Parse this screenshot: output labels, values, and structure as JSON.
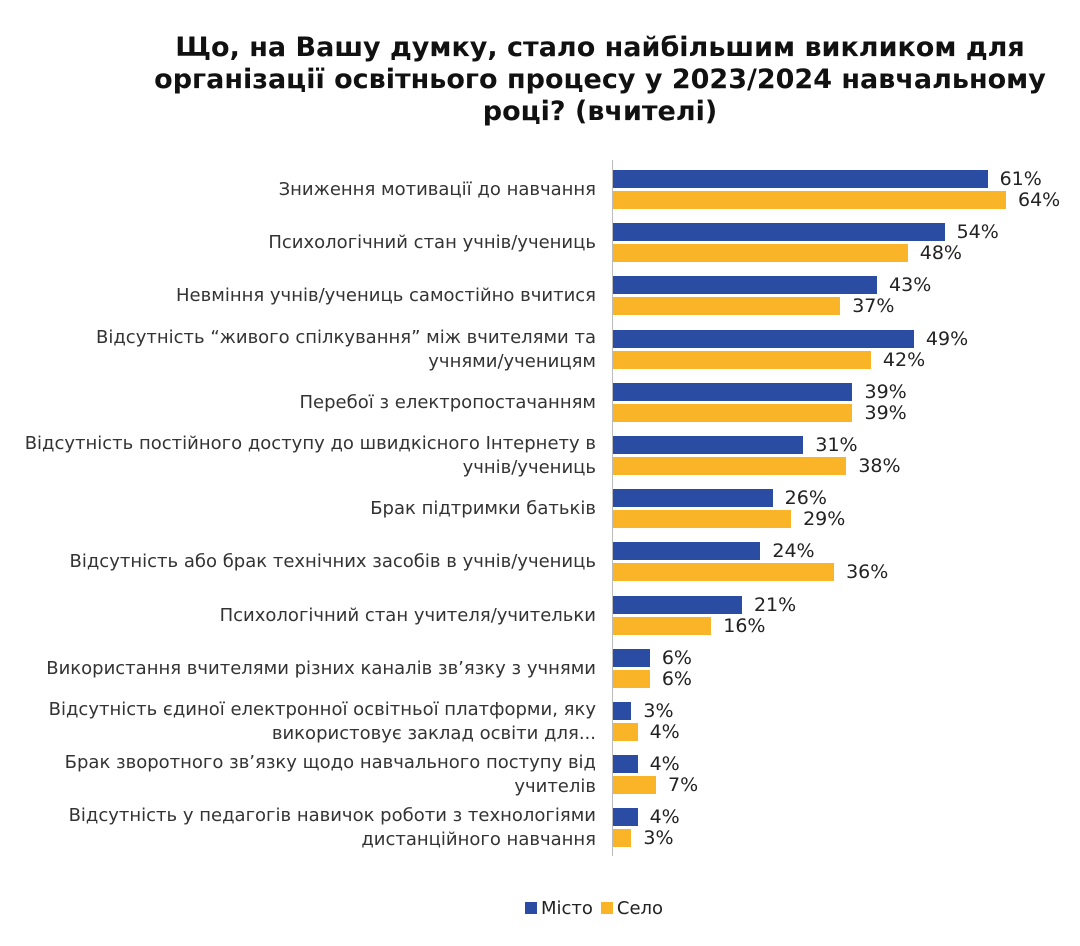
{
  "chart_data": {
    "type": "bar",
    "orientation": "horizontal",
    "title": "Що, на Вашу думку, стало найбільшим викликом для організації освітнього процесу у 2023/2024 навчальному році? (вчителі)",
    "categories": [
      "Зниження мотивації до навчання",
      "Психологічний стан учнів/учениць",
      "Невміння учнів/учениць самостійно вчитися",
      "Відсутність “живого спілкування” між вчителями та учнями/ученицям",
      "Перебої з електропостачанням",
      "Відсутність постійного доступу до швидкісного Інтернету в учнів/учениць",
      "Брак підтримки батьків",
      "Відсутність або брак технічних засобів в учнів/учениць",
      "Психологічний стан учителя/учительки",
      "Використання вчителями різних каналів зв’язку з учнями",
      "Відсутність єдиної електронної освітньої платформи, яку використовує заклад освіти для...",
      "Брак зворотного зв’язку щодо навчального поступу від учителів",
      "Відсутність у педагогів навичок роботи з технологіями дистанційного навчання"
    ],
    "series": [
      {
        "name": "Місто",
        "color": "#2b4ca3",
        "values": [
          61,
          54,
          43,
          49,
          39,
          31,
          26,
          24,
          21,
          6,
          3,
          4,
          4
        ],
        "value_labels": [
          "61%",
          "54%",
          "43%",
          "49%",
          "39%",
          "31%",
          "26%",
          "24%",
          "21%",
          "6%",
          "3%",
          "4%",
          "4%"
        ]
      },
      {
        "name": "Село",
        "color": "#f9b527",
        "values": [
          64,
          48,
          37,
          42,
          39,
          38,
          29,
          36,
          16,
          6,
          4,
          7,
          3
        ],
        "value_labels": [
          "64%",
          "48%",
          "37%",
          "42%",
          "39%",
          "38%",
          "29%",
          "36%",
          "16%",
          "6%",
          "4%",
          "7%",
          "3%"
        ]
      }
    ]
  }
}
